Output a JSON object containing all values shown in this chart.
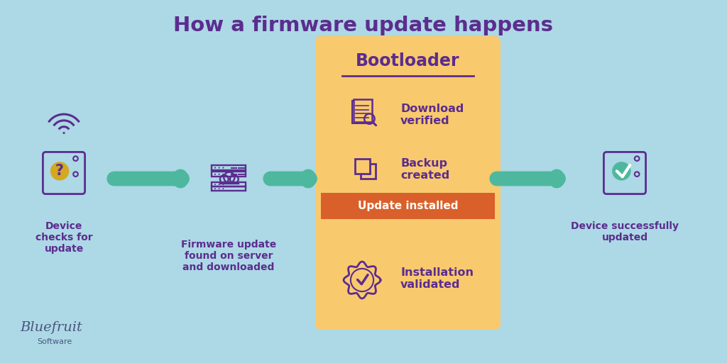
{
  "title": "How a firmware update happens",
  "bg_color": "#add8e6",
  "purple": "#5b2d8e",
  "green": "#4db89e",
  "orange_bg": "#f9c96e",
  "red_banner": "#d9602a",
  "step_labels": [
    "Device\nchecks for\nupdate",
    "Firmware update\nfound on server\nand downloaded",
    "Device successfully\nupdated"
  ],
  "bootloader_title": "Bootloader",
  "bootloader_items": [
    "Download\nverified",
    "Backup\ncreated",
    "Update installed",
    "Installation\nvalidated"
  ],
  "bluefruit_label": "Bluefruit",
  "software_label": "Software"
}
